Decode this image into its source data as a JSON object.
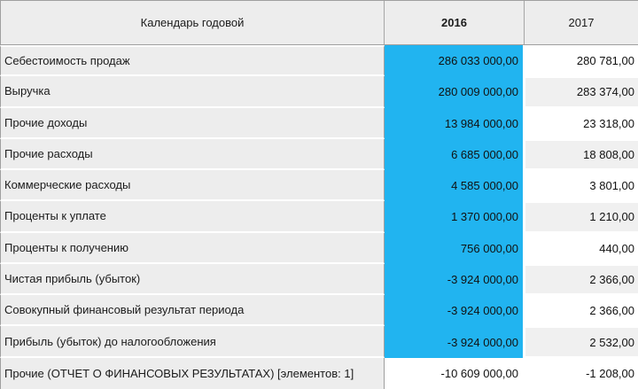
{
  "header": {
    "label_column": "Календарь годовой",
    "col_2016": "2016",
    "col_2017": "2017"
  },
  "colors": {
    "selection_2016_column": "#21b4f0",
    "header_and_label_bg": "#ededed",
    "alt_row_bg": "#f0f0f0",
    "border": "#9f9f9f"
  },
  "rows": [
    {
      "label": "Себестоимость продаж",
      "v2016": "286 033 000,00",
      "v2017": "280 781,00",
      "selected": true
    },
    {
      "label": "Выручка",
      "v2016": "280 009 000,00",
      "v2017": "283 374,00",
      "selected": true
    },
    {
      "label": "Прочие доходы",
      "v2016": "13 984 000,00",
      "v2017": "23 318,00",
      "selected": true
    },
    {
      "label": "Прочие расходы",
      "v2016": "6 685 000,00",
      "v2017": "18 808,00",
      "selected": true
    },
    {
      "label": "Коммерческие расходы",
      "v2016": "4 585 000,00",
      "v2017": "3 801,00",
      "selected": true
    },
    {
      "label": "Проценты к уплате",
      "v2016": "1 370 000,00",
      "v2017": "1 210,00",
      "selected": true
    },
    {
      "label": "Проценты к получению",
      "v2016": "756 000,00",
      "v2017": "440,00",
      "selected": true
    },
    {
      "label": "Чистая прибыль (убыток)",
      "v2016": "-3 924 000,00",
      "v2017": "2 366,00",
      "selected": true
    },
    {
      "label": "Совокупный финансовый результат периода",
      "v2016": "-3 924 000,00",
      "v2017": "2 366,00",
      "selected": true
    },
    {
      "label": "Прибыль (убыток) до налогообложения",
      "v2016": "-3 924 000,00",
      "v2017": "2 532,00",
      "selected": true
    },
    {
      "label": "Прочие (ОТЧЕТ О ФИНАНСОВЫХ РЕЗУЛЬТАТАХ) [элементов: 1]",
      "v2016": "-10 609 000,00",
      "v2017": "-1 208,00",
      "selected": false
    }
  ]
}
